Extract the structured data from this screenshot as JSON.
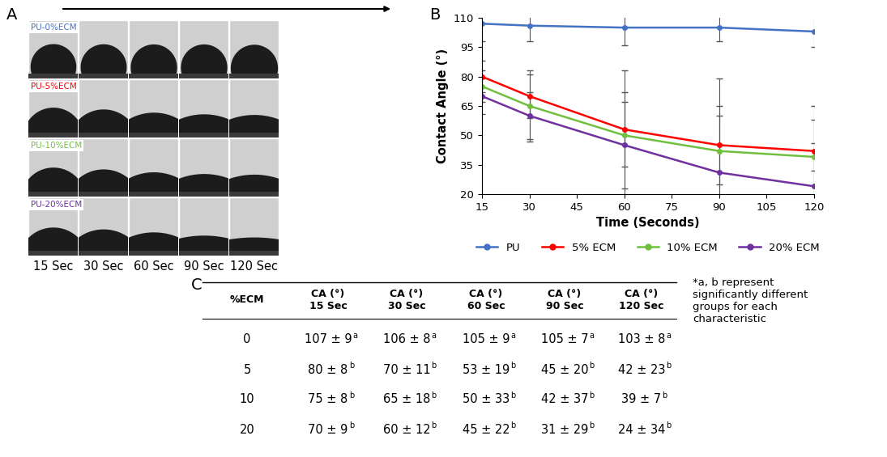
{
  "panel_labels": [
    "A",
    "B",
    "C"
  ],
  "images": {
    "groups": [
      "PU-0%ECM",
      "PU-5%ECM",
      "PU-10%ECM",
      "PU-20%ECM"
    ],
    "times": [
      "15 Sec",
      "30 Sec",
      "60 Sec",
      "90 Sec",
      "120 Sec"
    ]
  },
  "chart_data": {
    "type": "line",
    "x_label": "Time (Seconds)",
    "y_label": "Contact Angle (°)",
    "x": [
      15,
      30,
      60,
      90,
      120
    ],
    "xlim": [
      15,
      120
    ],
    "xticks": [
      15,
      30,
      45,
      60,
      75,
      90,
      105,
      120
    ],
    "ylim": [
      20,
      110
    ],
    "yticks": [
      20,
      35,
      50,
      65,
      80,
      95,
      110
    ],
    "grid": false,
    "legend": "bottom",
    "marker": "circle",
    "series": [
      {
        "name": "PU",
        "color": "#4472c4",
        "values": [
          107,
          106,
          105,
          105,
          103
        ],
        "errors": [
          9,
          8,
          9,
          7,
          8
        ]
      },
      {
        "name": "5% ECM",
        "color": "#ff0000",
        "values": [
          80,
          70,
          53,
          45,
          42
        ],
        "errors": [
          8,
          11,
          19,
          20,
          23
        ]
      },
      {
        "name": "10% ECM",
        "color": "#70c040",
        "values": [
          75,
          65,
          50,
          42,
          39
        ],
        "errors": [
          8,
          18,
          33,
          37,
          7
        ]
      },
      {
        "name": "20% ECM",
        "color": "#7030a0",
        "values": [
          70,
          60,
          45,
          31,
          24
        ],
        "errors": [
          9,
          12,
          22,
          29,
          34
        ]
      }
    ]
  },
  "table": {
    "header": [
      "%ECM",
      "CA (°)\n15 Sec",
      "CA (°)\n30 Sec",
      "CA (°)\n60 Sec",
      "CA (°)\n90 Sec",
      "CA (°)\n120 Sec"
    ],
    "rows": [
      [
        {
          "text": "0"
        },
        {
          "text": "107 ± 9",
          "superscript": "a"
        },
        {
          "text": "106 ± 8",
          "superscript": "a"
        },
        {
          "text": "105 ± 9",
          "superscript": "a"
        },
        {
          "text": "105 ± 7",
          "superscript": "a"
        },
        {
          "text": "103 ± 8",
          "superscript": "a"
        }
      ],
      [
        {
          "text": "5"
        },
        {
          "text": "80 ± 8",
          "superscript": "b"
        },
        {
          "text": "70 ± 11",
          "superscript": "b"
        },
        {
          "text": "53 ± 19",
          "superscript": "b"
        },
        {
          "text": "45 ± 20",
          "superscript": "b"
        },
        {
          "text": "42 ± 23",
          "superscript": "b"
        }
      ],
      [
        {
          "text": "10"
        },
        {
          "text": "75 ± 8",
          "superscript": "b"
        },
        {
          "text": "65 ± 18",
          "superscript": "b"
        },
        {
          "text": "50 ± 33",
          "superscript": "b"
        },
        {
          "text": "42 ± 37",
          "superscript": "b"
        },
        {
          "text": "39 ± 7",
          "superscript": "b"
        }
      ],
      [
        {
          "text": "20"
        },
        {
          "text": "70 ± 9",
          "superscript": "b"
        },
        {
          "text": "60 ± 12",
          "superscript": "b"
        },
        {
          "text": "45 ± 22",
          "superscript": "b"
        },
        {
          "text": "31 ± 29",
          "superscript": "b"
        },
        {
          "text": "24 ± 34",
          "superscript": "b"
        }
      ]
    ],
    "footnote": "*a, b represent\nsignificantly different\ngroups for each\ncharacteristic"
  }
}
